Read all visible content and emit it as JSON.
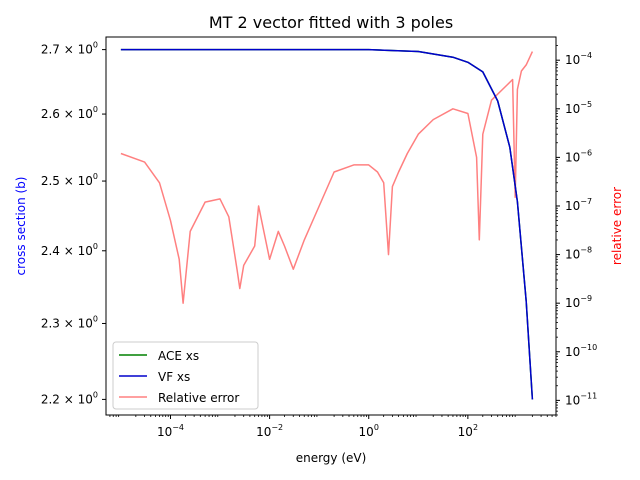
{
  "chart_data": {
    "type": "line",
    "title": "MT 2 vector fitted with 3 poles",
    "xlabel": "energy (eV)",
    "ylabel": "cross section (b)",
    "y2label": "relative error",
    "xscale": "log",
    "yscale": "log",
    "y2scale": "log",
    "xlim": [
      5e-06,
      6000
    ],
    "ylim": [
      2.18,
      2.72
    ],
    "y2lim": [
      5e-12,
      0.0003
    ],
    "x_ticks": [
      {
        "value": 0.0001,
        "base": "10",
        "exp": "−4"
      },
      {
        "value": 0.01,
        "base": "10",
        "exp": "−2"
      },
      {
        "value": 1,
        "base": "10",
        "exp": "0"
      },
      {
        "value": 100,
        "base": "10",
        "exp": "2"
      }
    ],
    "y_ticks": [
      {
        "value": 2.2,
        "label": "2.2 × 10",
        "exp": "0"
      },
      {
        "value": 2.3,
        "label": "2.3 × 10",
        "exp": "0"
      },
      {
        "value": 2.4,
        "label": "2.4 × 10",
        "exp": "0"
      },
      {
        "value": 2.5,
        "label": "2.5 × 10",
        "exp": "0"
      },
      {
        "value": 2.6,
        "label": "2.6 × 10",
        "exp": "0"
      },
      {
        "value": 2.7,
        "label": "2.7 × 10",
        "exp": "0"
      }
    ],
    "y2_ticks": [
      {
        "value": 1e-11,
        "base": "10",
        "exp": "−11"
      },
      {
        "value": 1e-10,
        "base": "10",
        "exp": "−10"
      },
      {
        "value": 1e-09,
        "base": "10",
        "exp": "−9"
      },
      {
        "value": 1e-08,
        "base": "10",
        "exp": "−8"
      },
      {
        "value": 1e-07,
        "base": "10",
        "exp": "−7"
      },
      {
        "value": 1e-06,
        "base": "10",
        "exp": "−6"
      },
      {
        "value": 1e-05,
        "base": "10",
        "exp": "−5"
      },
      {
        "value": 0.0001,
        "base": "10",
        "exp": "−4"
      }
    ],
    "series": [
      {
        "name": "ACE xs",
        "color": "#008000",
        "axis": "left",
        "x": [
          1e-05,
          1,
          10,
          50,
          100,
          200,
          400,
          700,
          1000,
          1500,
          2000
        ],
        "y": [
          2.7,
          2.7,
          2.697,
          2.688,
          2.68,
          2.665,
          2.62,
          2.55,
          2.47,
          2.33,
          2.2
        ]
      },
      {
        "name": "VF xs",
        "color": "#0000cc",
        "axis": "left",
        "x": [
          1e-05,
          1,
          10,
          50,
          100,
          200,
          400,
          700,
          1000,
          1500,
          2000
        ],
        "y": [
          2.7,
          2.7,
          2.697,
          2.688,
          2.68,
          2.665,
          2.62,
          2.55,
          2.47,
          2.33,
          2.2
        ]
      },
      {
        "name": "Relative error",
        "color": "#ff8080",
        "axis": "right",
        "x": [
          1e-05,
          3e-05,
          6e-05,
          0.0001,
          0.00015,
          0.00018,
          0.00025,
          0.0005,
          0.001,
          0.0015,
          0.0022,
          0.0025,
          0.003,
          0.005,
          0.006,
          0.01,
          0.015,
          0.02,
          0.03,
          0.05,
          0.1,
          0.2,
          0.5,
          1,
          1.5,
          2,
          2.5,
          3,
          4,
          6,
          10,
          20,
          50,
          100,
          150,
          170,
          200,
          300,
          600,
          800,
          900,
          1000,
          1200,
          1500,
          2000
        ],
        "y": [
          1.2e-06,
          8e-07,
          3e-07,
          5e-08,
          8e-09,
          1e-09,
          3e-08,
          1.2e-07,
          1.4e-07,
          6e-08,
          5e-09,
          2e-09,
          6e-09,
          1.5e-08,
          1e-07,
          8e-09,
          3e-08,
          1.5e-08,
          5e-09,
          2e-08,
          1e-07,
          5e-07,
          7e-07,
          7e-07,
          5e-07,
          3e-07,
          1e-08,
          2.5e-07,
          5e-07,
          1.2e-06,
          3e-06,
          6e-06,
          1e-05,
          8e-06,
          1e-06,
          2e-08,
          3e-06,
          1.5e-05,
          3e-05,
          4e-05,
          1.5e-07,
          2.5e-05,
          6e-05,
          8e-05,
          0.00015
        ]
      }
    ],
    "legend": {
      "position": "lower-left",
      "entries": [
        "ACE xs",
        "VF xs",
        "Relative error"
      ]
    },
    "grid": false
  }
}
